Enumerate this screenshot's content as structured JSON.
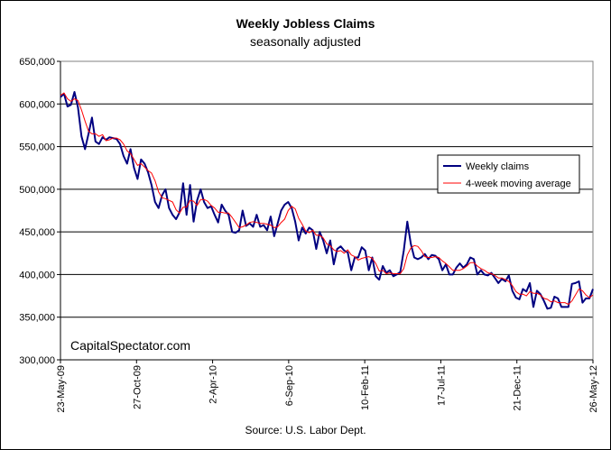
{
  "chart_data": {
    "type": "line",
    "title": "Weekly Jobless Claims",
    "subtitle": "seasonally adjusted",
    "source": "Source:  U.S. Labor Dept.",
    "watermark": "CapitalSpectator.com",
    "xlabel": "",
    "ylabel": "",
    "ylim": [
      300000,
      650000
    ],
    "yticks": [
      300000,
      350000,
      400000,
      450000,
      500000,
      550000,
      600000,
      650000
    ],
    "ytick_labels": [
      "300,000",
      "350,000",
      "400,000",
      "450,000",
      "500,000",
      "550,000",
      "600,000",
      "650,000"
    ],
    "x_start": "2009-05-23",
    "x_end": "2012-05-26",
    "xtick_labels": [
      "23-May-09",
      "27-Oct-09",
      "2-Apr-10",
      "6-Sep-10",
      "10-Feb-11",
      "17-Jul-11",
      "21-Dec-11",
      "26-May-12"
    ],
    "grid": true,
    "legend_position": "right",
    "series": [
      {
        "name": "Weekly claims",
        "color": "#000080",
        "values": [
          608000,
          612000,
          597000,
          599000,
          614000,
          596000,
          562000,
          547000,
          565000,
          584000,
          556000,
          553000,
          561000,
          558000,
          561000,
          560000,
          559000,
          553000,
          539000,
          530000,
          547000,
          525000,
          512000,
          535000,
          530000,
          520000,
          505000,
          485000,
          478000,
          493000,
          500000,
          478000,
          470000,
          465000,
          473000,
          507000,
          470000,
          505000,
          462000,
          487000,
          500000,
          485000,
          478000,
          480000,
          470000,
          461000,
          482000,
          475000,
          470000,
          450000,
          449000,
          452000,
          475000,
          457000,
          460000,
          456000,
          470000,
          456000,
          458000,
          452000,
          468000,
          445000,
          460000,
          475000,
          482000,
          485000,
          478000,
          462000,
          440000,
          455000,
          448000,
          455000,
          452000,
          430000,
          450000,
          440000,
          425000,
          440000,
          412000,
          430000,
          433000,
          428000,
          426000,
          405000,
          420000,
          420000,
          432000,
          428000,
          405000,
          420000,
          398000,
          394000,
          410000,
          402000,
          405000,
          398000,
          400000,
          403000,
          428000,
          462000,
          436000,
          420000,
          418000,
          420000,
          424000,
          418000,
          423000,
          422000,
          418000,
          405000,
          412000,
          400000,
          400000,
          408000,
          413000,
          408000,
          412000,
          420000,
          418000,
          400000,
          405000,
          400000,
          399000,
          402000,
          396000,
          390000,
          395000,
          392000,
          399000,
          381000,
          373000,
          371000,
          383000,
          380000,
          390000,
          362000,
          381000,
          377000,
          369000,
          360000,
          361000,
          374000,
          372000,
          362000,
          362000,
          362000,
          389000,
          390000,
          392000,
          367000,
          372000,
          372000,
          383000
        ]
      },
      {
        "name": "4-week moving average",
        "color": "#ff0000",
        "values": [
          610000,
          613000,
          606000,
          603000,
          606000,
          604000,
          593000,
          580000,
          568000,
          565000,
          565000,
          562000,
          564000,
          557000,
          558000,
          560000,
          560000,
          558000,
          553000,
          545000,
          542000,
          535000,
          528000,
          530000,
          526000,
          522000,
          519000,
          510000,
          497000,
          490000,
          489000,
          487000,
          485000,
          476000,
          472000,
          479000,
          479000,
          487000,
          486000,
          481000,
          488000,
          488000,
          486000,
          481000,
          478000,
          473000,
          473000,
          472000,
          472000,
          467000,
          461000,
          455000,
          456000,
          458000,
          461000,
          462000,
          461000,
          460000,
          460000,
          459000,
          458000,
          455000,
          456000,
          461000,
          465000,
          475000,
          480000,
          477000,
          466000,
          459000,
          451000,
          449000,
          452000,
          446000,
          446000,
          443000,
          436000,
          434000,
          429000,
          427000,
          428000,
          425000,
          429000,
          423000,
          421000,
          417000,
          419000,
          420000,
          421000,
          419000,
          413000,
          404000,
          405000,
          401000,
          402000,
          401000,
          401000,
          401000,
          407000,
          423000,
          431000,
          434000,
          433000,
          428000,
          421000,
          420000,
          420000,
          421000,
          420000,
          416000,
          413000,
          409000,
          405000,
          405000,
          405000,
          407000,
          410000,
          414000,
          414000,
          410000,
          407000,
          405000,
          402000,
          401000,
          399000,
          396000,
          396000,
          394000,
          392000,
          387000,
          380000,
          377000,
          377000,
          375000,
          380000,
          378000,
          378000,
          376000,
          372000,
          371000,
          368000,
          369000,
          367000,
          367000,
          367000,
          365000,
          369000,
          376000,
          383000,
          381000,
          376000,
          373000,
          376000
        ]
      }
    ]
  }
}
